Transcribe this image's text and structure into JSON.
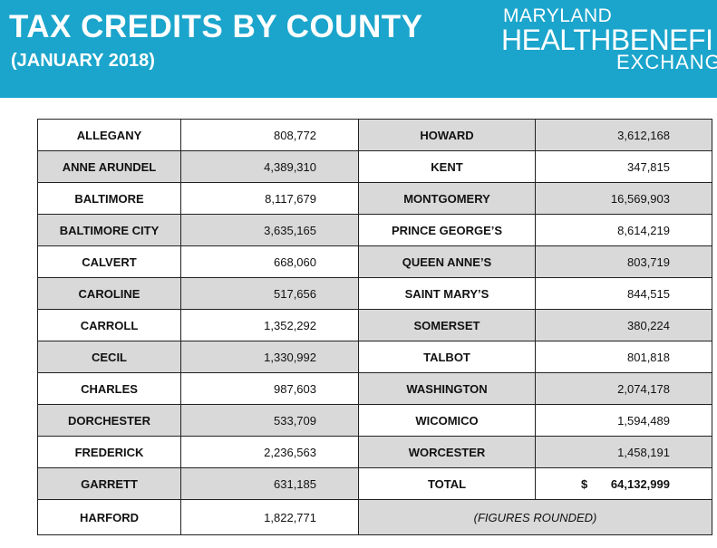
{
  "header": {
    "title": "TAX CREDITS BY COUNTY",
    "subtitle": "(JANUARY 2018)",
    "logo": [
      "MARYLAND",
      "HEALTHBENEFI",
      "EXCHANG"
    ]
  },
  "table": {
    "rows": [
      [
        "ALLEGANY",
        "808,772",
        "HOWARD",
        "3,612,168"
      ],
      [
        "ANNE ARUNDEL",
        "4,389,310",
        "KENT",
        "347,815"
      ],
      [
        "BALTIMORE",
        "8,117,679",
        "MONTGOMERY",
        "16,569,903"
      ],
      [
        "BALTIMORE CITY",
        "3,635,165",
        "PRINCE GEORGE’S",
        "8,614,219"
      ],
      [
        "CALVERT",
        "668,060",
        "QUEEN ANNE’S",
        "803,719"
      ],
      [
        "CAROLINE",
        "517,656",
        "SAINT MARY’S",
        "844,515"
      ],
      [
        "CARROLL",
        "1,352,292",
        "SOMERSET",
        "380,224"
      ],
      [
        "CECIL",
        "1,330,992",
        "TALBOT",
        "801,818"
      ],
      [
        "CHARLES",
        "987,603",
        "WASHINGTON",
        "2,074,178"
      ],
      [
        "DORCHESTER",
        "533,709",
        "WICOMICO",
        "1,594,489"
      ],
      [
        "FREDERICK",
        "2,236,563",
        "WORCESTER",
        "1,458,191"
      ],
      [
        "GARRETT",
        "631,185",
        "TOTAL",
        "64,132,999"
      ],
      [
        "HARFORD",
        "1,822,771"
      ]
    ],
    "total_currency": "$",
    "note": "(FIGURES ROUNDED)"
  }
}
